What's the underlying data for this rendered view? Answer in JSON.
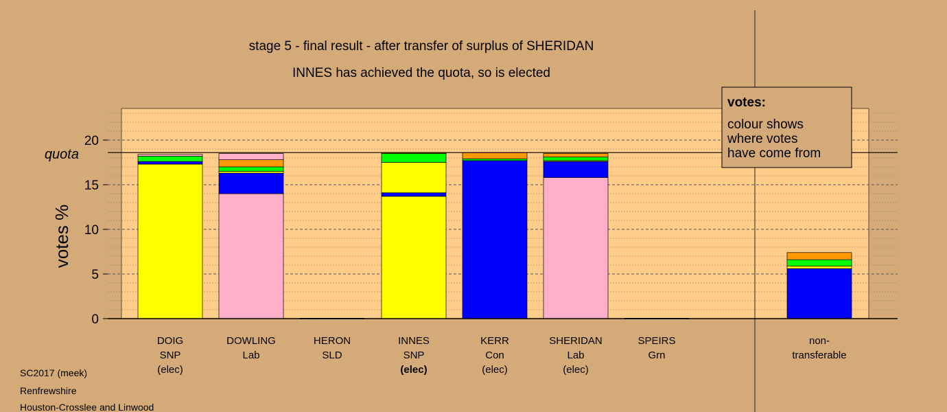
{
  "colors": {
    "background": "#d4aa78",
    "plot_bg": "#ffcc8a",
    "SNP": "#ffff00",
    "Lab": "#ffb0c8",
    "Con": "#0000ff",
    "SLD": "#ff9900",
    "Grn": "#00ff00",
    "quota_line": "#000000"
  },
  "chart_data": {
    "type": "bar",
    "stacked": true,
    "title": "stage 5 - final result - after transfer of surplus of SHERIDAN",
    "subtitle": "INNES has achieved the quota, so is elected",
    "ylabel": "votes %",
    "ylim": [
      0,
      23.5
    ],
    "yticks": [
      0,
      5,
      10,
      15,
      20
    ],
    "quota": 18.6,
    "quota_label": "quota",
    "candidates": [
      {
        "name": "DOIG",
        "party": "SNP",
        "status": "(elec)",
        "bold": false
      },
      {
        "name": "DOWLING",
        "party": "Lab",
        "status": "",
        "bold": false
      },
      {
        "name": "HERON",
        "party": "SLD",
        "status": "",
        "bold": false
      },
      {
        "name": "INNES",
        "party": "SNP",
        "status": "(elec)",
        "bold": true
      },
      {
        "name": "KERR",
        "party": "Con",
        "status": "(elec)",
        "bold": false
      },
      {
        "name": "SHERIDAN",
        "party": "Lab",
        "status": "(elec)",
        "bold": false
      },
      {
        "name": "SPEIRS",
        "party": "Grn",
        "status": "",
        "bold": false
      },
      {
        "name": "non-",
        "party": "transferable",
        "status": "",
        "bold": false
      }
    ],
    "segments": [
      [
        {
          "source": "SNP",
          "value": 17.3
        },
        {
          "source": "Con",
          "value": 0.3
        },
        {
          "source": "Grn",
          "value": 0.6
        },
        {
          "source": "Lab",
          "value": 0.2
        }
      ],
      [
        {
          "source": "Lab",
          "value": 14.0
        },
        {
          "source": "Con",
          "value": 2.3
        },
        {
          "source": "SNP",
          "value": 0.2
        },
        {
          "source": "Grn",
          "value": 0.5
        },
        {
          "source": "SLD",
          "value": 0.8
        },
        {
          "source": "Lab",
          "value": 0.7
        }
      ],
      [],
      [
        {
          "source": "SNP",
          "value": 13.7
        },
        {
          "source": "Con",
          "value": 0.4
        },
        {
          "source": "SNP",
          "value": 3.4
        },
        {
          "source": "Grn",
          "value": 1.0
        },
        {
          "source": "SLD",
          "value": 0.1
        }
      ],
      [
        {
          "source": "Con",
          "value": 17.7
        },
        {
          "source": "Grn",
          "value": 0.2
        },
        {
          "source": "SLD",
          "value": 0.7
        }
      ],
      [
        {
          "source": "Lab",
          "value": 15.8
        },
        {
          "source": "Con",
          "value": 1.8
        },
        {
          "source": "SNP",
          "value": 0.1
        },
        {
          "source": "Grn",
          "value": 0.4
        },
        {
          "source": "SLD",
          "value": 0.4
        }
      ],
      [],
      [
        {
          "source": "Con",
          "value": 5.6
        },
        {
          "source": "SNP",
          "value": 0.3
        },
        {
          "source": "Grn",
          "value": 0.7
        },
        {
          "source": "SLD",
          "value": 0.8
        }
      ]
    ]
  },
  "legend": {
    "title": "votes:",
    "lines": [
      "colour shows",
      "where votes",
      "have come from"
    ]
  },
  "footer": [
    "SC2017 (meek)",
    "Renfrewshire",
    "Houston-Crosslee and Linwood"
  ]
}
